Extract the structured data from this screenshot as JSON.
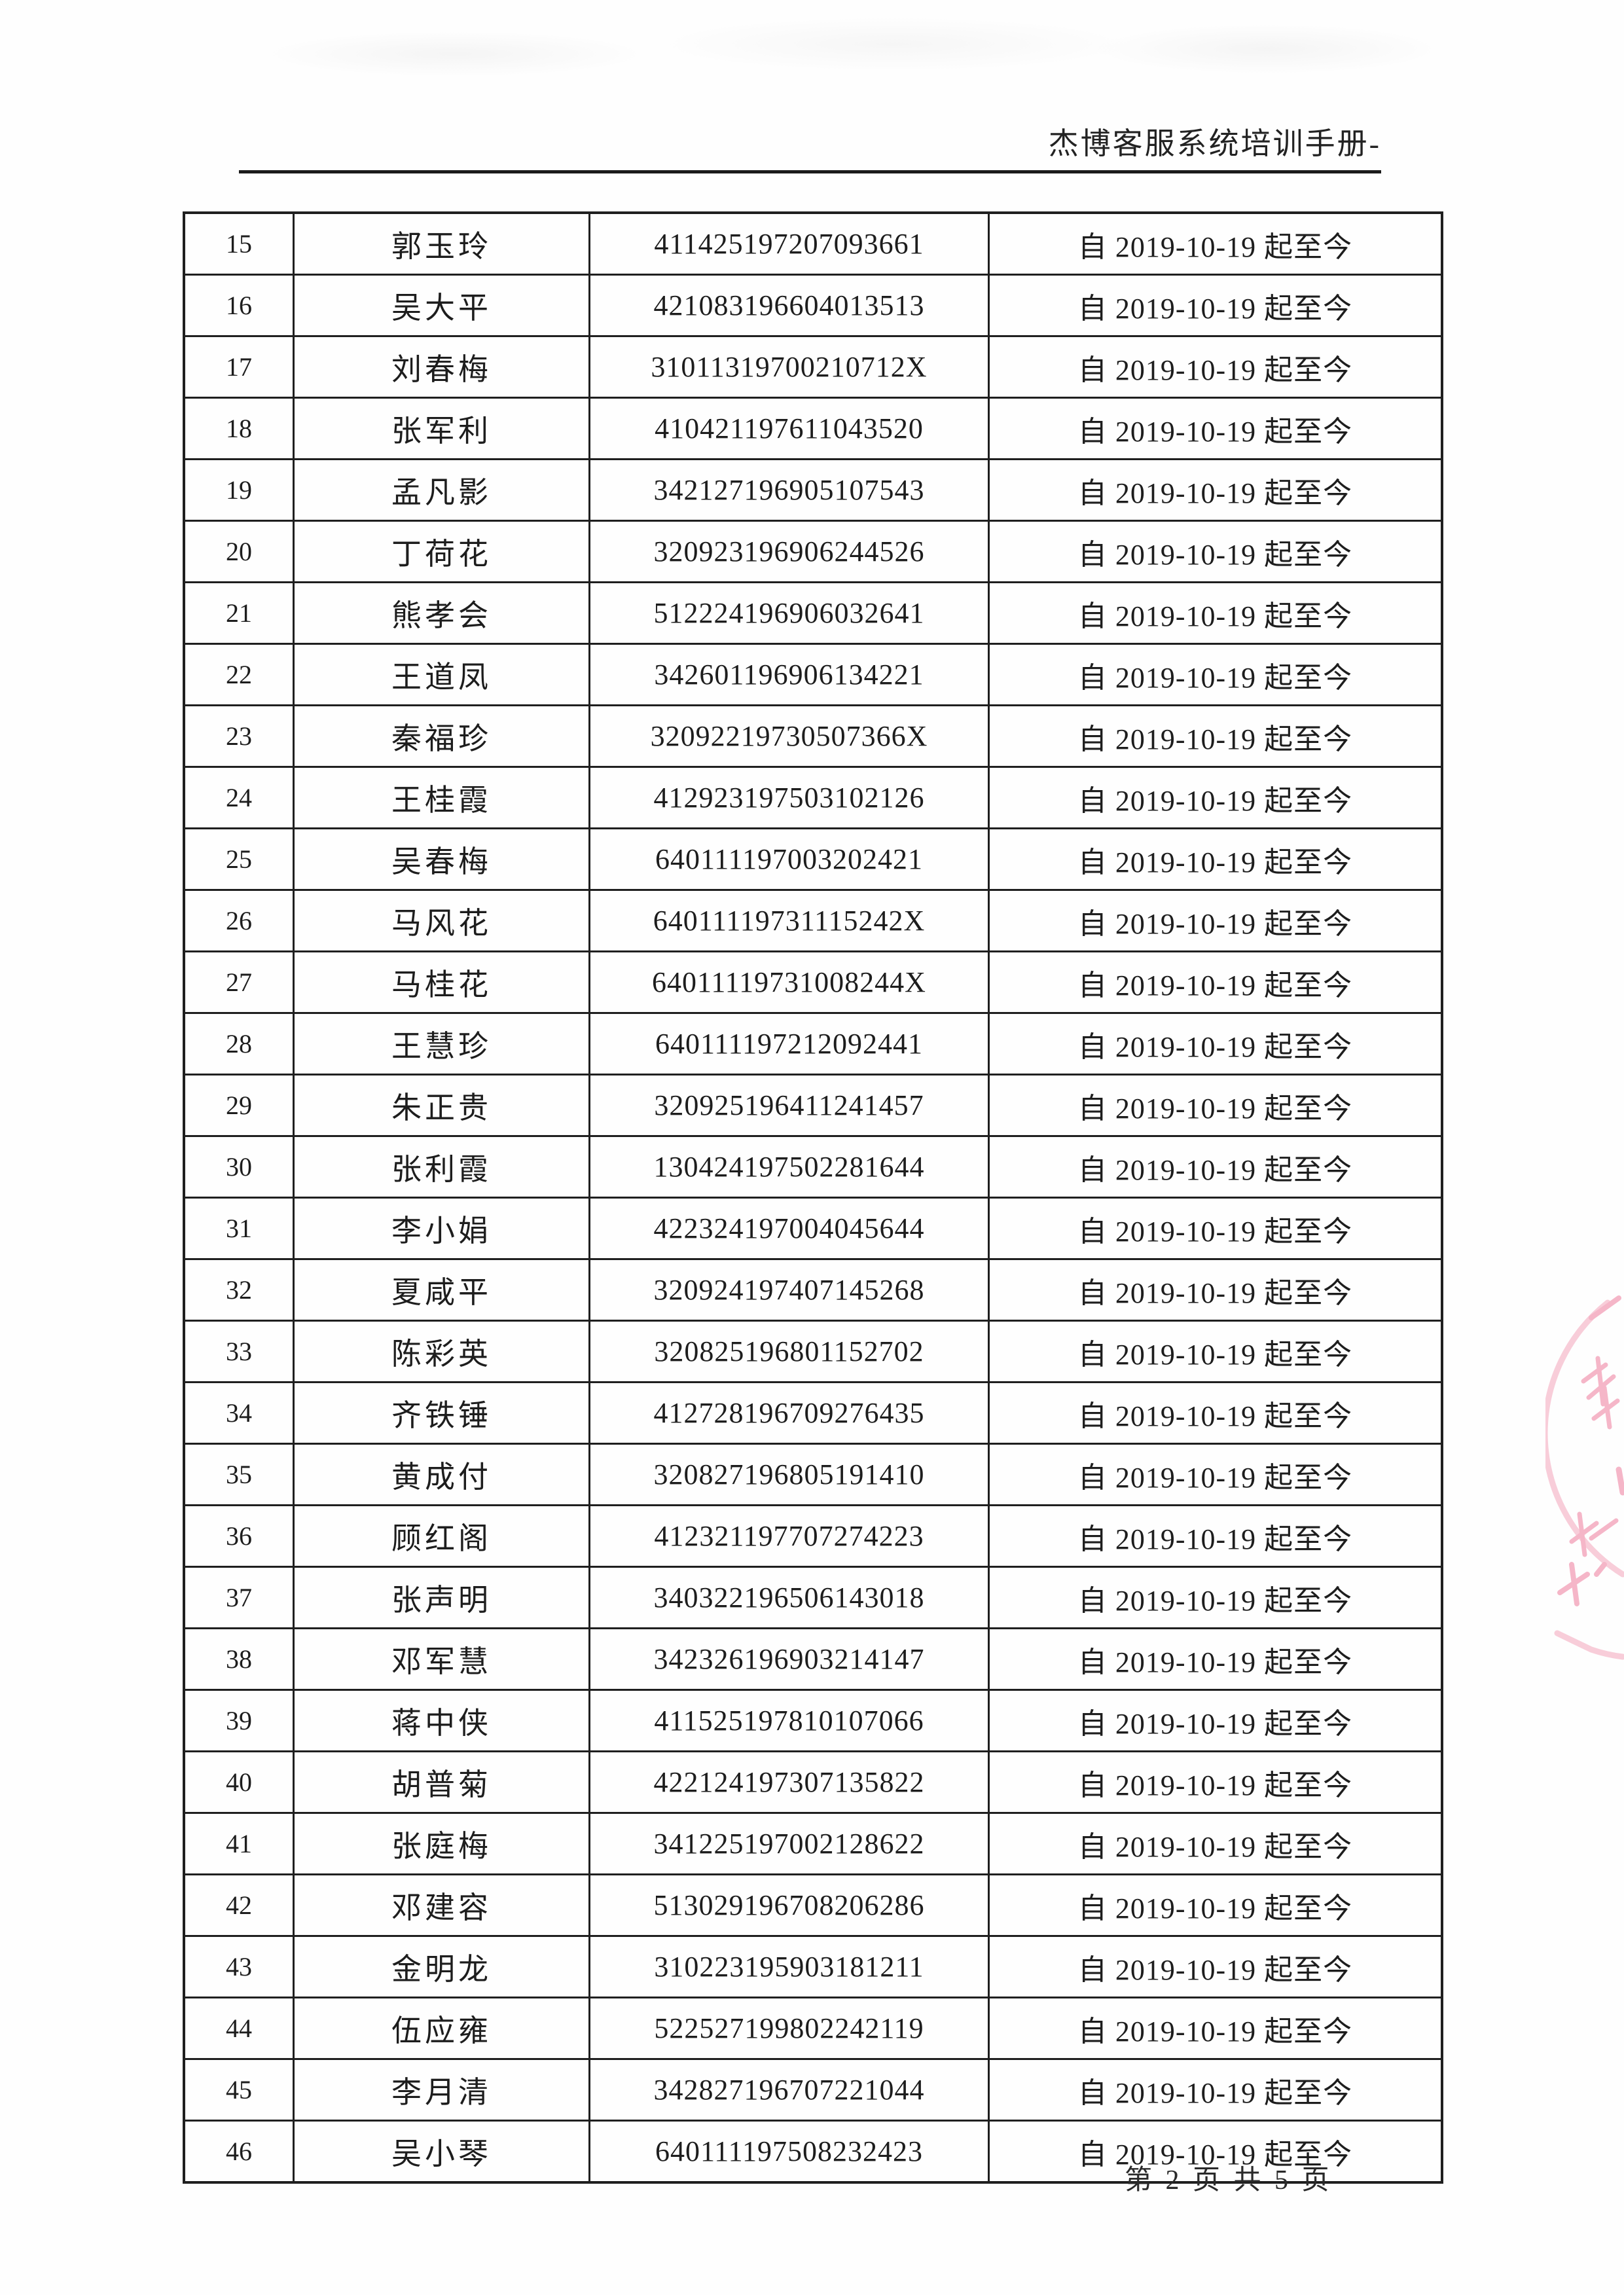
{
  "header": {
    "title": "杰博客服系统培训手册-"
  },
  "footer": {
    "page_info": "第 2 页 共 5 页"
  },
  "stamp": {
    "label": "red-seal-stamp",
    "color": "#ee7d9d"
  },
  "table": {
    "rows": [
      {
        "no": "15",
        "name": "郭玉玲",
        "id": "411425197207093661",
        "period": "自 2019-10-19 起至今"
      },
      {
        "no": "16",
        "name": "吴大平",
        "id": "421083196604013513",
        "period": "自 2019-10-19 起至今"
      },
      {
        "no": "17",
        "name": "刘春梅",
        "id": "31011319700210712X",
        "period": "自 2019-10-19 起至今"
      },
      {
        "no": "18",
        "name": "张军利",
        "id": "410421197611043520",
        "period": "自 2019-10-19 起至今"
      },
      {
        "no": "19",
        "name": "孟凡影",
        "id": "342127196905107543",
        "period": "自 2019-10-19 起至今"
      },
      {
        "no": "20",
        "name": "丁荷花",
        "id": "320923196906244526",
        "period": "自 2019-10-19 起至今"
      },
      {
        "no": "21",
        "name": "熊孝会",
        "id": "512224196906032641",
        "period": "自 2019-10-19 起至今"
      },
      {
        "no": "22",
        "name": "王道凤",
        "id": "342601196906134221",
        "period": "自 2019-10-19 起至今"
      },
      {
        "no": "23",
        "name": "秦福珍",
        "id": "32092219730507366X",
        "period": "自 2019-10-19 起至今"
      },
      {
        "no": "24",
        "name": "王桂霞",
        "id": "412923197503102126",
        "period": "自 2019-10-19 起至今"
      },
      {
        "no": "25",
        "name": "吴春梅",
        "id": "640111197003202421",
        "period": "自 2019-10-19 起至今"
      },
      {
        "no": "26",
        "name": "马风花",
        "id": "64011119731115242X",
        "period": "自 2019-10-19 起至今"
      },
      {
        "no": "27",
        "name": "马桂花",
        "id": "64011119731008244X",
        "period": "自 2019-10-19 起至今"
      },
      {
        "no": "28",
        "name": "王慧珍",
        "id": "640111197212092441",
        "period": "自 2019-10-19 起至今"
      },
      {
        "no": "29",
        "name": "朱正贵",
        "id": "320925196411241457",
        "period": "自 2019-10-19 起至今"
      },
      {
        "no": "30",
        "name": "张利霞",
        "id": "130424197502281644",
        "period": "自 2019-10-19 起至今"
      },
      {
        "no": "31",
        "name": "李小娟",
        "id": "422324197004045644",
        "period": "自 2019-10-19 起至今"
      },
      {
        "no": "32",
        "name": "夏咸平",
        "id": "320924197407145268",
        "period": "自 2019-10-19 起至今"
      },
      {
        "no": "33",
        "name": "陈彩英",
        "id": "320825196801152702",
        "period": "自 2019-10-19 起至今"
      },
      {
        "no": "34",
        "name": "齐铁锤",
        "id": "412728196709276435",
        "period": "自 2019-10-19 起至今"
      },
      {
        "no": "35",
        "name": "黄成付",
        "id": "320827196805191410",
        "period": "自 2019-10-19 起至今"
      },
      {
        "no": "36",
        "name": "顾红阁",
        "id": "412321197707274223",
        "period": "自 2019-10-19 起至今"
      },
      {
        "no": "37",
        "name": "张声明",
        "id": "340322196506143018",
        "period": "自 2019-10-19 起至今"
      },
      {
        "no": "38",
        "name": "邓军慧",
        "id": "342326196903214147",
        "period": "自 2019-10-19 起至今"
      },
      {
        "no": "39",
        "name": "蒋中侠",
        "id": "411525197810107066",
        "period": "自 2019-10-19 起至今"
      },
      {
        "no": "40",
        "name": "胡普菊",
        "id": "422124197307135822",
        "period": "自 2019-10-19 起至今"
      },
      {
        "no": "41",
        "name": "张庭梅",
        "id": "341225197002128622",
        "period": "自 2019-10-19 起至今"
      },
      {
        "no": "42",
        "name": "邓建容",
        "id": "513029196708206286",
        "period": "自 2019-10-19 起至今"
      },
      {
        "no": "43",
        "name": "金明龙",
        "id": "310223195903181211",
        "period": "自 2019-10-19 起至今"
      },
      {
        "no": "44",
        "name": "伍应雍",
        "id": "522527199802242119",
        "period": "自 2019-10-19 起至今"
      },
      {
        "no": "45",
        "name": "李月清",
        "id": "342827196707221044",
        "period": "自 2019-10-19 起至今"
      },
      {
        "no": "46",
        "name": "吴小琴",
        "id": "640111197508232423",
        "period": "自 2019-10-19 起至今"
      }
    ]
  }
}
